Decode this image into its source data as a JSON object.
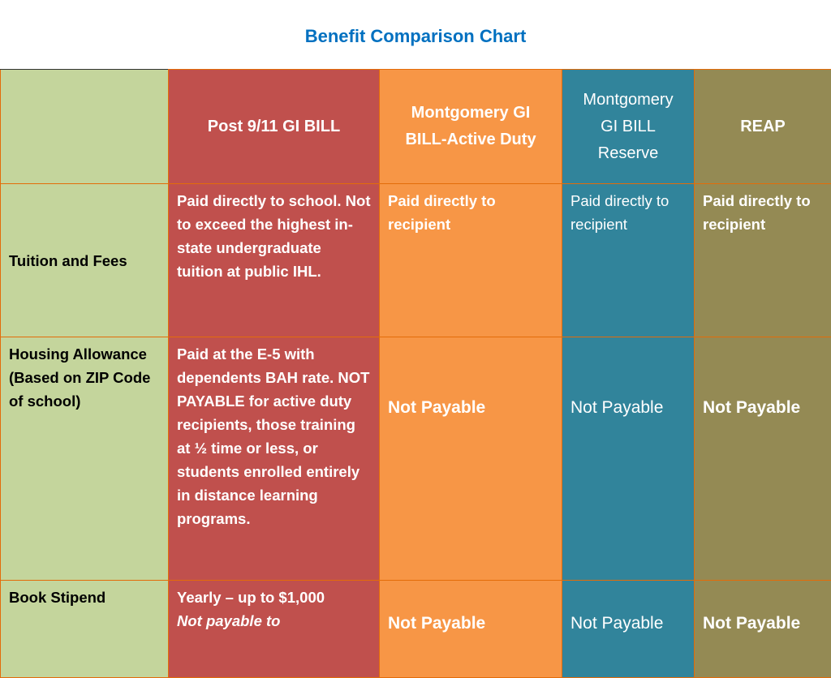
{
  "header": {
    "title": "Benefit Comparison Chart"
  },
  "table": {
    "columns": [
      "",
      "Post 9/11 GI BILL",
      "Montgomery GI BILL-Active Duty",
      "Montgomery GI BILL Reserve",
      "REAP"
    ],
    "rows": [
      [
        "Tuition and Fees",
        "Paid directly to school.  Not to exceed the highest in-state undergraduate tuition at public IHL.",
        "Paid directly to recipient",
        "Paid directly to recipient",
        "Paid directly to recipient"
      ],
      [
        "Housing Allowance (Based on ZIP Code of school)",
        "Paid at the E-5 with dependents BAH rate. NOT PAYABLE for active duty recipients, those training at ½ time or less, or students enrolled entirely in distance learning programs.",
        "Not Payable",
        "Not Payable",
        "Not Payable"
      ],
      [
        "Book Stipend",
        [
          "Yearly – up to $1,000",
          "Not payable to"
        ],
        "Not Payable",
        "Not Payable",
        "Not Payable"
      ]
    ]
  }
}
